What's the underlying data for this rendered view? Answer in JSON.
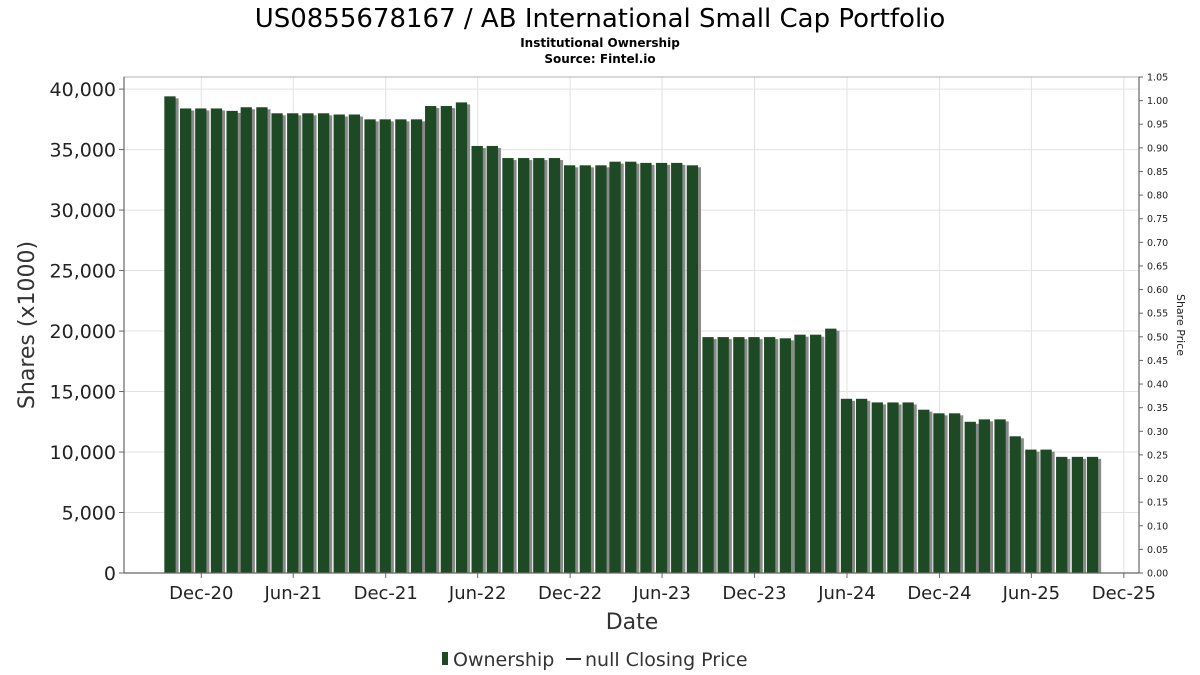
{
  "colors": {
    "bar": "#1d4a24",
    "bar_shadow": "#8a8a8a",
    "grid": "#e2e2e2",
    "axis": "#666666",
    "price_line": "#333333"
  },
  "chart_data": {
    "type": "bar",
    "title": "US0855678167 / AB International Small Cap Portfolio",
    "subtitle_lines": [
      "Institutional Ownership",
      "Source: Fintel.io"
    ],
    "xlabel": "Date",
    "ylabel": "Shares (x1000)",
    "y2label": "Share Price",
    "ylim": [
      0,
      41000
    ],
    "y2lim": [
      0,
      1.05
    ],
    "yticks": [
      0,
      5000,
      10000,
      15000,
      20000,
      25000,
      30000,
      35000,
      40000
    ],
    "ytick_labels": [
      "0",
      "5,000",
      "10,000",
      "15,000",
      "20,000",
      "25,000",
      "30,000",
      "35,000",
      "40,000"
    ],
    "y2ticks": [
      0.0,
      0.05,
      0.1,
      0.15,
      0.2,
      0.25,
      0.3,
      0.35,
      0.4,
      0.45,
      0.5,
      0.55,
      0.6,
      0.65,
      0.7,
      0.75,
      0.8,
      0.85,
      0.9,
      0.95,
      1.0,
      1.05
    ],
    "y2tick_labels": [
      "0.00",
      "0.05",
      "0.10",
      "0.15",
      "0.20",
      "0.25",
      "0.30",
      "0.35",
      "0.40",
      "0.45",
      "0.50",
      "0.55",
      "0.60",
      "0.65",
      "0.70",
      "0.75",
      "0.80",
      "0.85",
      "0.90",
      "0.95",
      "1.00",
      "1.05"
    ],
    "x_range": [
      "2020-07-01",
      "2025-12-31"
    ],
    "xticks": [
      {
        "date": "2020-12-01",
        "label": "Dec-20"
      },
      {
        "date": "2021-06-01",
        "label": "Jun-21"
      },
      {
        "date": "2021-12-01",
        "label": "Dec-21"
      },
      {
        "date": "2022-06-01",
        "label": "Jun-22"
      },
      {
        "date": "2022-12-01",
        "label": "Dec-22"
      },
      {
        "date": "2023-06-01",
        "label": "Jun-23"
      },
      {
        "date": "2023-12-01",
        "label": "Dec-23"
      },
      {
        "date": "2024-06-01",
        "label": "Jun-24"
      },
      {
        "date": "2024-12-01",
        "label": "Dec-24"
      },
      {
        "date": "2025-06-01",
        "label": "Jun-25"
      },
      {
        "date": "2025-12-01",
        "label": "Dec-25"
      }
    ],
    "series": [
      {
        "name": "Ownership",
        "x": [
          "2020-09-30",
          "2020-10-31",
          "2020-11-30",
          "2020-12-31",
          "2021-01-31",
          "2021-02-28",
          "2021-03-31",
          "2021-04-30",
          "2021-05-31",
          "2021-06-30",
          "2021-07-31",
          "2021-08-31",
          "2021-09-30",
          "2021-10-31",
          "2021-11-30",
          "2021-12-31",
          "2022-01-31",
          "2022-02-28",
          "2022-03-31",
          "2022-04-30",
          "2022-05-31",
          "2022-06-30",
          "2022-07-31",
          "2022-08-31",
          "2022-09-30",
          "2022-10-31",
          "2022-11-30",
          "2022-12-31",
          "2023-01-31",
          "2023-02-28",
          "2023-03-31",
          "2023-04-30",
          "2023-05-31",
          "2023-06-30",
          "2023-07-31",
          "2023-08-31",
          "2023-09-30",
          "2023-10-31",
          "2023-11-30",
          "2023-12-31",
          "2024-01-31",
          "2024-02-29",
          "2024-03-31",
          "2024-04-30",
          "2024-05-31",
          "2024-06-30",
          "2024-07-31",
          "2024-08-31",
          "2024-09-30",
          "2024-10-31",
          "2024-11-30",
          "2024-12-31",
          "2025-01-31",
          "2025-02-28",
          "2025-03-31",
          "2025-04-30",
          "2025-05-31",
          "2025-06-30",
          "2025-07-31",
          "2025-08-31",
          "2025-09-30"
        ],
        "values": [
          39400,
          38400,
          38400,
          38400,
          38200,
          38500,
          38500,
          38000,
          38000,
          38000,
          38000,
          37900,
          37900,
          37500,
          37500,
          37500,
          37500,
          38600,
          38600,
          38900,
          35300,
          35300,
          34300,
          34300,
          34300,
          34300,
          33700,
          33700,
          33700,
          34000,
          34000,
          33900,
          33900,
          33900,
          33700,
          19500,
          19500,
          19500,
          19500,
          19500,
          19400,
          19700,
          19700,
          20200,
          14400,
          14400,
          14100,
          14100,
          14100,
          13500,
          13200,
          13200,
          12500,
          12700,
          12700,
          11300,
          10200,
          10200,
          9600,
          9600,
          9600
        ]
      }
    ],
    "legend": {
      "position": "bottom-center",
      "entries": [
        "Ownership",
        "null Closing Price"
      ]
    },
    "grid": true
  }
}
